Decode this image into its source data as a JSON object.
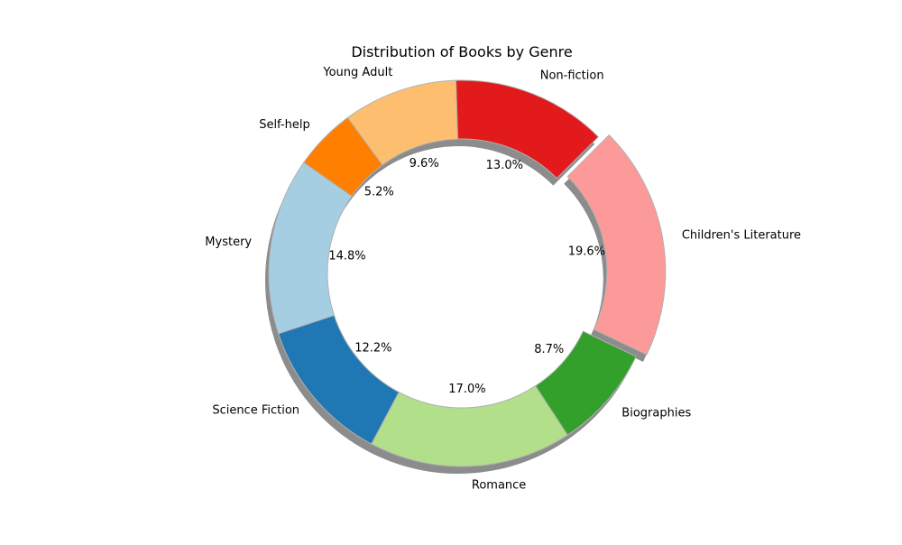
{
  "chart_data": {
    "type": "pie",
    "title": "Distribution of Books by Genre",
    "donut": true,
    "shadow": true,
    "start_angle_deg": 45,
    "direction": "counterclockwise",
    "autopct_format": "{:.1f}%",
    "slices": [
      {
        "label": "Non-fiction",
        "value": 13.0,
        "color": "#e31a1c",
        "explode": false
      },
      {
        "label": "Young Adult",
        "value": 9.6,
        "color": "#fdbf6f",
        "explode": false
      },
      {
        "label": "Self-help",
        "value": 5.2,
        "color": "#ff7f00",
        "explode": false
      },
      {
        "label": "Mystery",
        "value": 14.8,
        "color": "#a6cee3",
        "explode": false
      },
      {
        "label": "Science Fiction",
        "value": 12.2,
        "color": "#1f78b4",
        "explode": false
      },
      {
        "label": "Romance",
        "value": 17.0,
        "color": "#b2df8a",
        "explode": false
      },
      {
        "label": "Biographies",
        "value": 8.7,
        "color": "#33a02c",
        "explode": false
      },
      {
        "label": "Children's Literature",
        "value": 19.6,
        "color": "#fb9a99",
        "explode": true
      }
    ]
  }
}
